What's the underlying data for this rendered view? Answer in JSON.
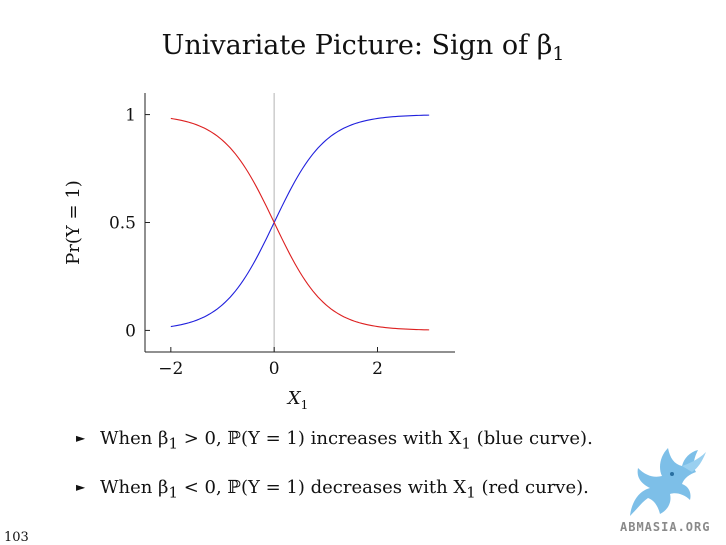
{
  "slide": {
    "title_main": "Univariate Picture: Sign of β",
    "title_sub": "1",
    "page_number": "103",
    "logo_text": "ABMASIA.ORG"
  },
  "bullets": [
    {
      "marker": "►",
      "pre": "When β",
      "beta_sub": "1",
      "cond": " > 0, ℙ(Y = 1) ",
      "verb": "increases",
      "mid": " with X",
      "x_sub": "1",
      "tail": " (blue curve)."
    },
    {
      "marker": "►",
      "pre": "When β",
      "beta_sub": "1",
      "cond": " < 0, ℙ(Y = 1) ",
      "verb": "decreases",
      "mid": " with X",
      "x_sub": "1",
      "tail": " (red curve)."
    }
  ],
  "chart_data": {
    "type": "line",
    "xlabel": "X",
    "xlabel_sub": "1",
    "ylabel": "Pr(Y = 1)",
    "xlim": [
      -2.5,
      3.5
    ],
    "ylim": [
      -0.1,
      1.1
    ],
    "xticks": [
      -2,
      0,
      2
    ],
    "xtick_labels": [
      "−2",
      "0",
      "2"
    ],
    "yticks": [
      0,
      0.5,
      1
    ],
    "ytick_labels": [
      "0",
      "0.5",
      "1"
    ],
    "vline_x": 0,
    "colors": {
      "positive": "#2020dd",
      "negative": "#dd2020",
      "vline": "#cccccc"
    },
    "series": [
      {
        "color": "#2020dd",
        "x": [
          -2,
          -1.5,
          -1,
          -0.5,
          0,
          0.5,
          1,
          1.5,
          2,
          2.5,
          3
        ],
        "y": [
          0.02,
          0.047,
          0.109,
          0.231,
          0.5,
          0.731,
          0.891,
          0.953,
          0.982,
          0.993,
          0.998
        ]
      },
      {
        "color": "#dd2020",
        "x": [
          -2,
          -1.5,
          -1,
          -0.5,
          0,
          0.5,
          1,
          1.5,
          2,
          2.5,
          3
        ],
        "y": [
          0.98,
          0.953,
          0.891,
          0.769,
          0.5,
          0.269,
          0.109,
          0.047,
          0.018,
          0.007,
          0.002
        ]
      }
    ]
  }
}
